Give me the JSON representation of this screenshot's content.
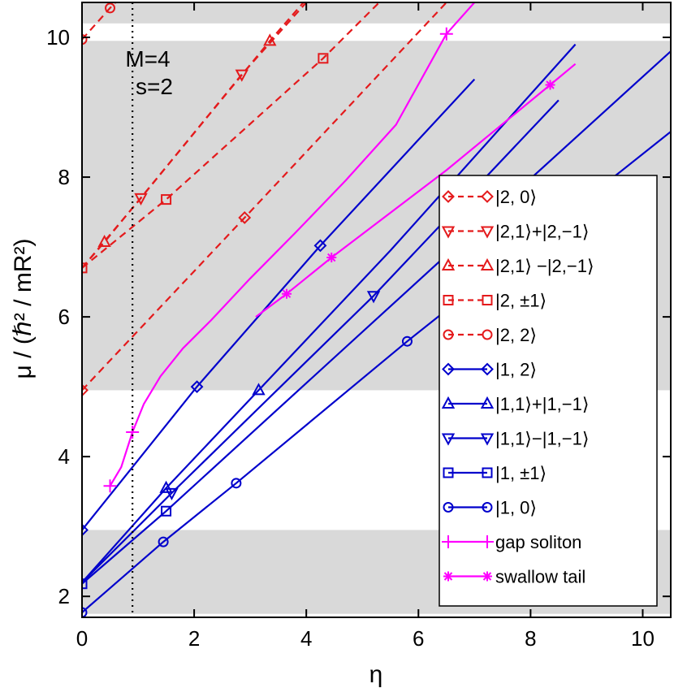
{
  "chart_data": {
    "type": "line",
    "title": "",
    "xlabel": "η",
    "ylabel": "μ / (ℏ² / mR²)",
    "xlim": [
      0,
      10.5
    ],
    "ylim": [
      1.7,
      10.5
    ],
    "xticks": [
      0,
      2,
      4,
      6,
      8,
      10
    ],
    "yticks": [
      2,
      4,
      6,
      8,
      10
    ],
    "xtick_labels": [
      "0",
      "2",
      "4",
      "6",
      "8",
      "10"
    ],
    "ytick_labels": [
      "2",
      "4",
      "6",
      "8",
      "10"
    ],
    "grid": false,
    "legend_position": "right",
    "bands": [
      {
        "y0": 1.75,
        "y1": 2.95,
        "color": "#d9d9d9"
      },
      {
        "y0": 4.95,
        "y1": 9.95,
        "color": "#d9d9d9"
      },
      {
        "y0": 10.2,
        "y1": 10.5,
        "color": "#d9d9d9"
      }
    ],
    "vline": {
      "x": 0.9,
      "style": "dotted",
      "color": "#000000"
    },
    "annotations": [
      {
        "text": "M=4",
        "x": 0.9,
        "y": 9.8
      },
      {
        "text": "s=2",
        "x": 0.9,
        "y": 9.3
      }
    ],
    "series": [
      {
        "name": "|2, 0⟩",
        "color": "#e41a1c",
        "dash": true,
        "marker": "diamond",
        "x": [
          0,
          2.9,
          6.5
        ],
        "y": [
          4.95,
          7.42,
          10.5
        ],
        "marker_x": [
          0,
          2.9
        ],
        "marker_y": [
          4.95,
          7.42
        ]
      },
      {
        "name": "|2,1⟩+|2,−1⟩",
        "color": "#e41a1c",
        "dash": true,
        "marker": "tri-down",
        "x": [
          0,
          1.05,
          2.85,
          4.0
        ],
        "y": [
          6.7,
          7.7,
          9.47,
          10.5
        ],
        "marker_x": [
          1.05,
          2.85
        ],
        "marker_y": [
          7.7,
          9.47
        ]
      },
      {
        "name": "|2,1⟩ −|2,−1⟩",
        "color": "#e41a1c",
        "dash": true,
        "marker": "tri-up",
        "x": [
          0,
          0.4,
          3.35,
          3.95
        ],
        "y": [
          6.7,
          7.07,
          9.95,
          10.5
        ],
        "marker_x": [
          0.4,
          3.35
        ],
        "marker_y": [
          7.07,
          9.95
        ]
      },
      {
        "name": "|2, ±1⟩",
        "color": "#e41a1c",
        "dash": true,
        "marker": "square",
        "x": [
          0,
          1.5,
          4.3,
          5.3
        ],
        "y": [
          6.7,
          7.68,
          9.7,
          10.5
        ],
        "marker_x": [
          0,
          1.5,
          4.3
        ],
        "marker_y": [
          6.7,
          7.68,
          9.7
        ]
      },
      {
        "name": "|2, 2⟩",
        "color": "#e41a1c",
        "dash": true,
        "marker": "circle",
        "x": [
          0,
          0.5,
          0.6
        ],
        "y": [
          9.97,
          10.42,
          10.5
        ],
        "marker_x": [
          0,
          0.5
        ],
        "marker_y": [
          9.97,
          10.42
        ]
      },
      {
        "name": "|1, 2⟩",
        "color": "#0000cc",
        "dash": false,
        "marker": "diamond",
        "x": [
          0,
          2.05,
          4.25,
          7.0
        ],
        "y": [
          2.95,
          5.0,
          7.02,
          9.4
        ],
        "marker_x": [
          0,
          2.05,
          4.25
        ],
        "marker_y": [
          2.95,
          5.0,
          7.02
        ]
      },
      {
        "name": "|1,1⟩+|1,−1⟩",
        "color": "#0000cc",
        "dash": false,
        "marker": "tri-up",
        "x": [
          0,
          1.5,
          3.15,
          5.5,
          8.8
        ],
        "y": [
          2.2,
          3.55,
          4.95,
          6.95,
          9.9
        ],
        "marker_x": [
          1.5,
          3.15
        ],
        "marker_y": [
          3.55,
          4.95
        ]
      },
      {
        "name": "|1,1⟩−|1,−1⟩",
        "color": "#0000cc",
        "dash": false,
        "marker": "tri-down",
        "x": [
          0,
          1.6,
          5.2,
          8.5
        ],
        "y": [
          2.2,
          3.48,
          6.3,
          9.1
        ],
        "marker_x": [
          1.6,
          5.2
        ],
        "marker_y": [
          3.48,
          6.3
        ]
      },
      {
        "name": "|1, ±1⟩",
        "color": "#0000cc",
        "dash": false,
        "marker": "square",
        "x": [
          0,
          1.5,
          7.0,
          10.5
        ],
        "y": [
          2.18,
          3.22,
          7.25,
          9.8
        ],
        "marker_x": [
          0,
          1.5
        ],
        "marker_y": [
          2.18,
          3.22
        ]
      },
      {
        "name": "|1, 0⟩",
        "color": "#0000cc",
        "dash": false,
        "marker": "circle",
        "x": [
          0,
          1.45,
          2.75,
          5.8,
          10.5
        ],
        "y": [
          1.77,
          2.78,
          3.62,
          5.65,
          8.65
        ],
        "marker_x": [
          0,
          1.45,
          2.75,
          5.8
        ],
        "marker_y": [
          1.77,
          2.78,
          3.62,
          5.65
        ]
      },
      {
        "name": "gap soliton",
        "color": "#ff00ff",
        "dash": false,
        "marker": "plus",
        "x": [
          0.5,
          0.7,
          0.9,
          1.1,
          1.4,
          1.8,
          2.3,
          3.0,
          3.8,
          4.7,
          5.6,
          6.5,
          7.0
        ],
        "y": [
          3.58,
          3.85,
          4.35,
          4.75,
          5.15,
          5.55,
          5.95,
          6.55,
          7.2,
          7.95,
          8.75,
          10.05,
          10.5
        ],
        "marker_x": [
          0.5,
          0.9,
          6.5
        ],
        "marker_y": [
          3.58,
          4.35,
          10.05
        ]
      },
      {
        "name": "swallow tail",
        "color": "#ff00ff",
        "dash": false,
        "marker": "star",
        "x": [
          3.1,
          3.65,
          4.45,
          6.5,
          8.35,
          8.8
        ],
        "y": [
          6.0,
          6.33,
          6.85,
          8.1,
          9.32,
          9.62
        ],
        "marker_x": [
          3.65,
          4.45,
          8.35
        ],
        "marker_y": [
          6.33,
          6.85,
          9.32
        ]
      }
    ]
  }
}
